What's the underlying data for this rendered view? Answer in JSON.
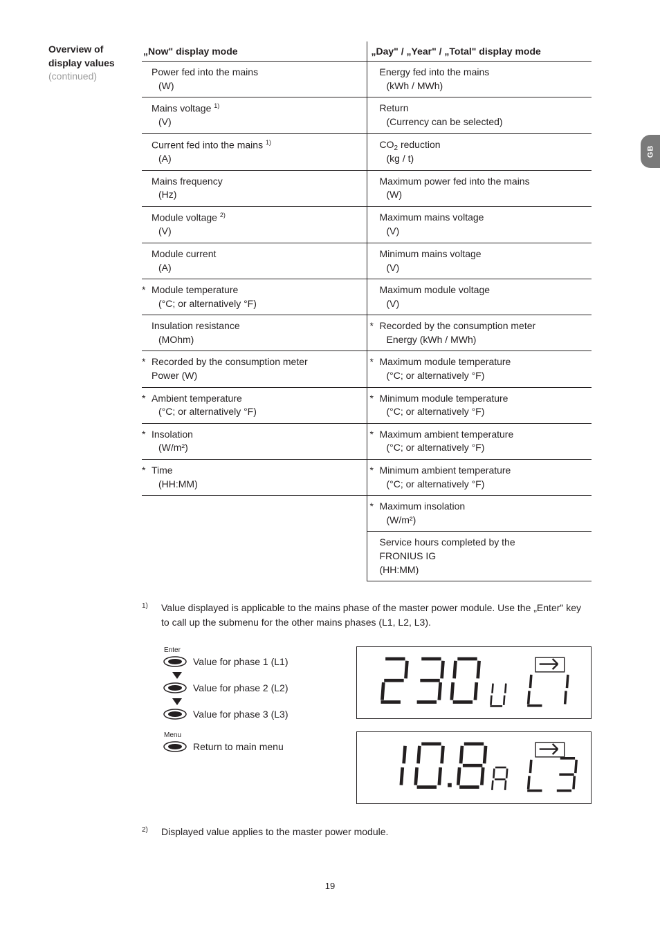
{
  "sideHeading": {
    "l1": "Overview of",
    "l2": "display values",
    "cont": "(continued)"
  },
  "gbLabel": "GB",
  "headers": {
    "left": "„Now\" display mode",
    "right": "„Day\" / „Year\" / „Total\" display mode"
  },
  "rows": [
    {
      "ls": "",
      "l1": "Power fed into the mains",
      "l2": "(W)",
      "rs": "",
      "r1": "Energy fed into the mains",
      "r2": "(kWh / MWh)"
    },
    {
      "ls": "",
      "l1": "Mains voltage <sup>1)</sup>",
      "l2": "(V)",
      "rs": "",
      "r1": "Return",
      "r2": "(Currency can be selected)"
    },
    {
      "ls": "",
      "l1": "Current fed into the mains <sup>1)</sup>",
      "l2": "(A)",
      "rs": "",
      "r1": "CO<sub>2</sub> reduction",
      "r2": "(kg / t)"
    },
    {
      "ls": "",
      "l1": "Mains frequency",
      "l2": "(Hz)",
      "rs": "",
      "r1": "Maximum power fed into the mains",
      "r2": "(W)"
    },
    {
      "ls": "",
      "l1": "Module voltage <sup>2)</sup>",
      "l2": "(V)",
      "rs": "",
      "r1": "Maximum mains voltage",
      "r2": "(V)"
    },
    {
      "ls": "",
      "l1": "Module current",
      "l2": "(A)",
      "rs": "",
      "r1": "Minimum mains voltage",
      "r2": "(V)"
    },
    {
      "ls": "*",
      "l1": "Module temperature",
      "l2": "(°C; or alternatively °F)",
      "rs": "",
      "r1": "Maximum module voltage",
      "r2": "(V)"
    },
    {
      "ls": "",
      "l1": "Insulation resistance",
      "l2": "(MOhm)",
      "rs": "*",
      "r1": "Recorded by the consumption meter",
      "r2": "Energy  (kWh / MWh)"
    },
    {
      "ls": "*",
      "l1": "Recorded by the consumption meter",
      "l2": "Power (W)",
      "l2noindent": true,
      "rs": "*",
      "r1": "Maximum module temperature",
      "r2": "(°C; or alternatively °F)"
    },
    {
      "ls": "*",
      "l1": "Ambient temperature",
      "l2": "(°C; or alternatively °F)",
      "rs": "*",
      "r1": "Minimum module temperature",
      "r2": "(°C; or alternatively °F)"
    },
    {
      "ls": "*",
      "l1": "Insolation",
      "l2": "(W/m²)",
      "rs": "*",
      "r1": "Maximum ambient temperature",
      "r2": "(°C; or alternatively °F)"
    },
    {
      "ls": "*",
      "l1": "Time",
      "l2": "(HH:MM)",
      "rs": "*",
      "r1": "Minimum ambient temperature",
      "r2": "(°C; or alternatively °F)"
    },
    {
      "leftEmpty": true,
      "rs": "*",
      "r1": "Maximum insolation",
      "r2": "(W/m²)"
    },
    {
      "leftEmpty": true,
      "rs": "",
      "r1": "Service hours completed by the",
      "r2": "FRONIUS IG",
      "r3": "(HH:MM)",
      "last": true
    }
  ],
  "footnotes": {
    "fn1": {
      "num": "1)",
      "text": "Value displayed is applicable to the mains phase of the master power module. Use the „Enter\" key to call up the submenu for the other mains phases (L1, L2, L3)."
    },
    "fn2": {
      "num": "2)",
      "text": "Displayed value applies to the master power module."
    }
  },
  "nav": {
    "enterLabel": "Enter",
    "menuLabel": "Menu",
    "p1": "Value for phase 1 (L1)",
    "p2": "Value for phase 2 (L2)",
    "p3": "Value for phase 3 (L3)",
    "ret": "Return to main menu"
  },
  "display": {
    "top": {
      "digits": "230",
      "sub": "V",
      "right": "L 1"
    },
    "bot": {
      "digits": "10.8",
      "sub": "A",
      "right": "L 3"
    }
  },
  "pageNum": "19",
  "colors": {
    "text": "#231f20",
    "grey": "#9b9b9b",
    "tab": "#7a7a7a"
  }
}
